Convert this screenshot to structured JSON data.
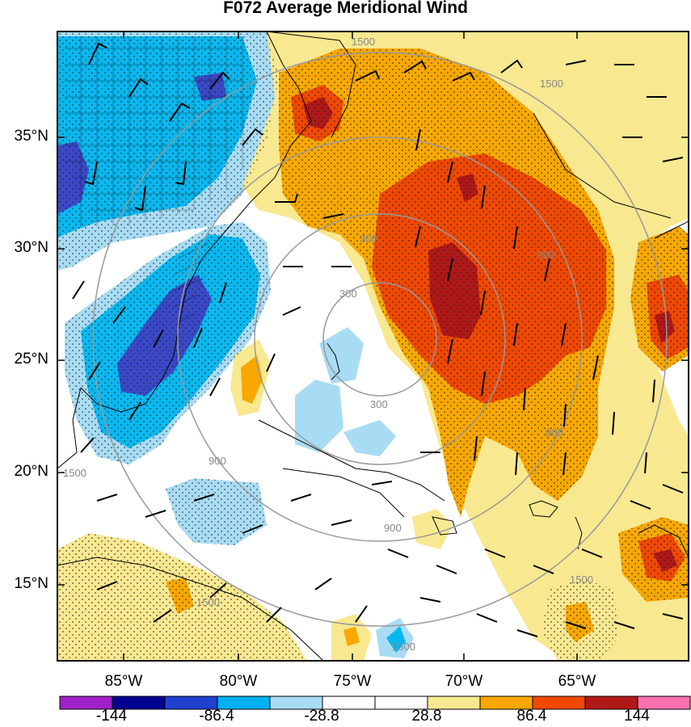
{
  "title": "F072 Average Meridional Wind",
  "latitude_labels": [
    "35°N",
    "30°N",
    "25°N",
    "20°N",
    "15°N"
  ],
  "longitude_labels": [
    "85°W",
    "80°W",
    "75°W",
    "70°W",
    "65°W"
  ],
  "colorbar": {
    "labels": [
      "-144",
      "-86.4",
      "-28.8",
      "28.8",
      "86.4",
      "144"
    ],
    "colors": [
      "#a020c8",
      "#000090",
      "#2040d0",
      "#00b0f0",
      "#a8dcf4",
      "#ffffff",
      "#ffffff",
      "#f8e890",
      "#f8a800",
      "#f04800",
      "#b01818",
      "#f870b0"
    ]
  },
  "contour_labels": [
    "300",
    "300",
    "300",
    "900",
    "900",
    "900",
    "900",
    "1500",
    "1500",
    "1500",
    "1500",
    "1500",
    "1500"
  ],
  "colors": {
    "blue_dark": "#3a48c8",
    "blue_mid": "#0ab8f0",
    "blue_light": "#a8dcf4",
    "yellow": "#f8e890",
    "orange": "#f8a800",
    "red_orange": "#f04800",
    "dark_red": "#b01818",
    "contour_gray": "#999999"
  }
}
